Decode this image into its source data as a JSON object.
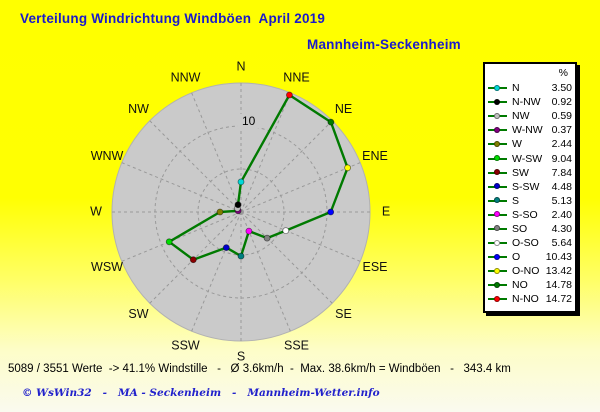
{
  "header": {
    "title": "Verteilung Windrichtung Windböen  April 2019",
    "station": "Mannheim-Seckenheim"
  },
  "chart_data": {
    "type": "radar",
    "subtype": "wind-rose-distribution",
    "title": "Verteilung Windrichtung Windböen  April 2019",
    "station": "Mannheim-Seckenheim",
    "unit": "%",
    "axes": [
      "N",
      "NNE",
      "NE",
      "ENE",
      "E",
      "ESE",
      "SE",
      "SSE",
      "S",
      "SSW",
      "SW",
      "WSW",
      "W",
      "WNW",
      "NW",
      "NNW"
    ],
    "values": [
      3.5,
      14.72,
      14.78,
      13.42,
      10.43,
      5.64,
      4.3,
      2.4,
      5.13,
      4.48,
      7.84,
      9.04,
      2.44,
      0.37,
      0.59,
      0.92
    ],
    "marker_colors": [
      "#00d9d9",
      "#ff0000",
      "#007a00",
      "#ffff00",
      "#0000ff",
      "#ffffff",
      "#808080",
      "#ff00ff",
      "#008080",
      "#0000cc",
      "#8b0000",
      "#00dd00",
      "#808000",
      "#800080",
      "#c0c0c0",
      "#000000"
    ],
    "rings": [
      5,
      10
    ],
    "ring_label": "10",
    "axis_max": 15,
    "line_color": "#007a00",
    "disk_color": "#cacaca",
    "grid_color": "#999999",
    "label_color": "#111111",
    "legend": {
      "header": "%",
      "rows": [
        {
          "label": "N",
          "value": "3.50",
          "dot": "#00d9d9"
        },
        {
          "label": "N-NW",
          "value": "0.92",
          "dot": "#000000"
        },
        {
          "label": "NW",
          "value": "0.59",
          "dot": "#c0c0c0"
        },
        {
          "label": "W-NW",
          "value": "0.37",
          "dot": "#800080"
        },
        {
          "label": "W",
          "value": "2.44",
          "dot": "#808000"
        },
        {
          "label": "W-SW",
          "value": "9.04",
          "dot": "#00dd00"
        },
        {
          "label": "SW",
          "value": "7.84",
          "dot": "#8b0000"
        },
        {
          "label": "S-SW",
          "value": "4.48",
          "dot": "#0000cc"
        },
        {
          "label": "S",
          "value": "5.13",
          "dot": "#008080"
        },
        {
          "label": "S-SO",
          "value": "2.40",
          "dot": "#ff00ff"
        },
        {
          "label": "SO",
          "value": "4.30",
          "dot": "#808080"
        },
        {
          "label": "O-SO",
          "value": "5.64",
          "dot": "#ffffff"
        },
        {
          "label": "O",
          "value": "10.43",
          "dot": "#0000ff"
        },
        {
          "label": "O-NO",
          "value": "13.42",
          "dot": "#ffff00"
        },
        {
          "label": "NO",
          "value": "14.78",
          "dot": "#007a00"
        },
        {
          "label": "N-NO",
          "value": "14.72",
          "dot": "#ff0000"
        }
      ]
    }
  },
  "footer": {
    "stats": "5089 / 3551 Werte  -> 41.1% Windstille   -   Ø 3.6km/h  -  Max. 38.6km/h = Windböen   -   343.4 km",
    "credit": "© WsWin32   -   MA - Seckenheim   -   Mannheim-Wetter.info"
  },
  "colors": {
    "background_top": "#ffff00",
    "background_bottom": "#fafaef",
    "heading_text": "#1a1acc",
    "stats_text": "#000000",
    "credit_text": "#2121cc"
  }
}
